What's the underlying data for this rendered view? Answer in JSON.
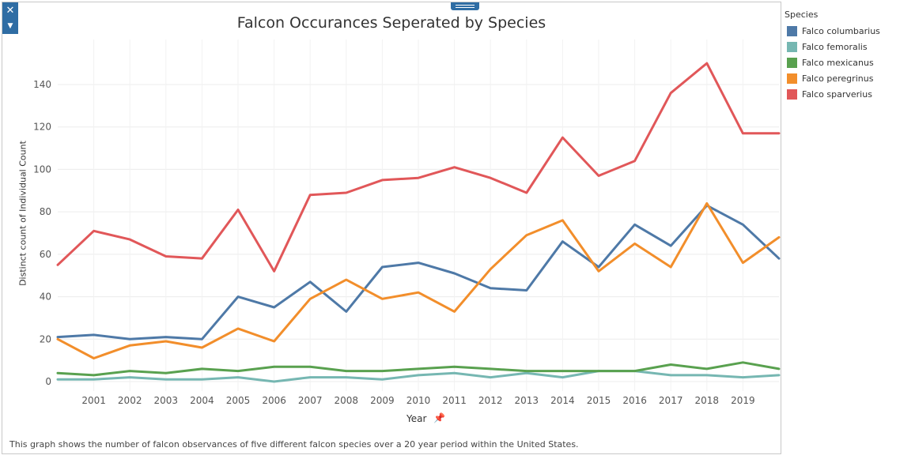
{
  "chart_data": {
    "type": "line",
    "title": "Falcon Occurances Seperated by Species",
    "xlabel": "Year",
    "ylabel": "Distinct count of Individual Count",
    "caption": "This graph shows the number of falcon observances of five different falcon species over a 20 year period within the United States.",
    "legend_title": "Species",
    "legend_position": "right",
    "grid": true,
    "x": [
      2000,
      2001,
      2002,
      2003,
      2004,
      2005,
      2006,
      2007,
      2008,
      2009,
      2010,
      2011,
      2012,
      2013,
      2014,
      2015,
      2016,
      2017,
      2018,
      2019,
      2020
    ],
    "xticks": [
      "2001",
      "2002",
      "2003",
      "2004",
      "2005",
      "2006",
      "2007",
      "2008",
      "2009",
      "2010",
      "2011",
      "2012",
      "2013",
      "2014",
      "2015",
      "2016",
      "2017",
      "2018",
      "2019"
    ],
    "yticks": [
      "0",
      "20",
      "40",
      "60",
      "80",
      "100",
      "120",
      "140"
    ],
    "ylim": [
      -2,
      155
    ],
    "series": [
      {
        "name": "Falco columbarius",
        "color": "#4e79a7",
        "values": [
          21,
          22,
          20,
          21,
          20,
          40,
          35,
          47,
          33,
          54,
          56,
          51,
          44,
          43,
          66,
          54,
          74,
          64,
          83,
          74,
          58
        ]
      },
      {
        "name": "Falco femoralis",
        "color": "#76b7b2",
        "values": [
          1,
          1,
          2,
          1,
          1,
          2,
          0,
          2,
          2,
          1,
          3,
          4,
          2,
          4,
          2,
          5,
          5,
          3,
          3,
          2,
          3
        ]
      },
      {
        "name": "Falco mexicanus",
        "color": "#59a14f",
        "values": [
          4,
          3,
          5,
          4,
          6,
          5,
          7,
          7,
          5,
          5,
          6,
          7,
          6,
          5,
          5,
          5,
          5,
          8,
          6,
          9,
          6
        ]
      },
      {
        "name": "Falco peregrinus",
        "color": "#f28e2b",
        "values": [
          20,
          11,
          17,
          19,
          16,
          25,
          19,
          39,
          48,
          39,
          42,
          33,
          53,
          69,
          76,
          52,
          65,
          54,
          84,
          56,
          68
        ]
      },
      {
        "name": "Falco sparverius",
        "color": "#e15759",
        "values": [
          55,
          71,
          67,
          59,
          58,
          81,
          52,
          88,
          89,
          95,
          96,
          101,
          96,
          89,
          115,
          97,
          104,
          136,
          150,
          117,
          117
        ]
      }
    ]
  }
}
